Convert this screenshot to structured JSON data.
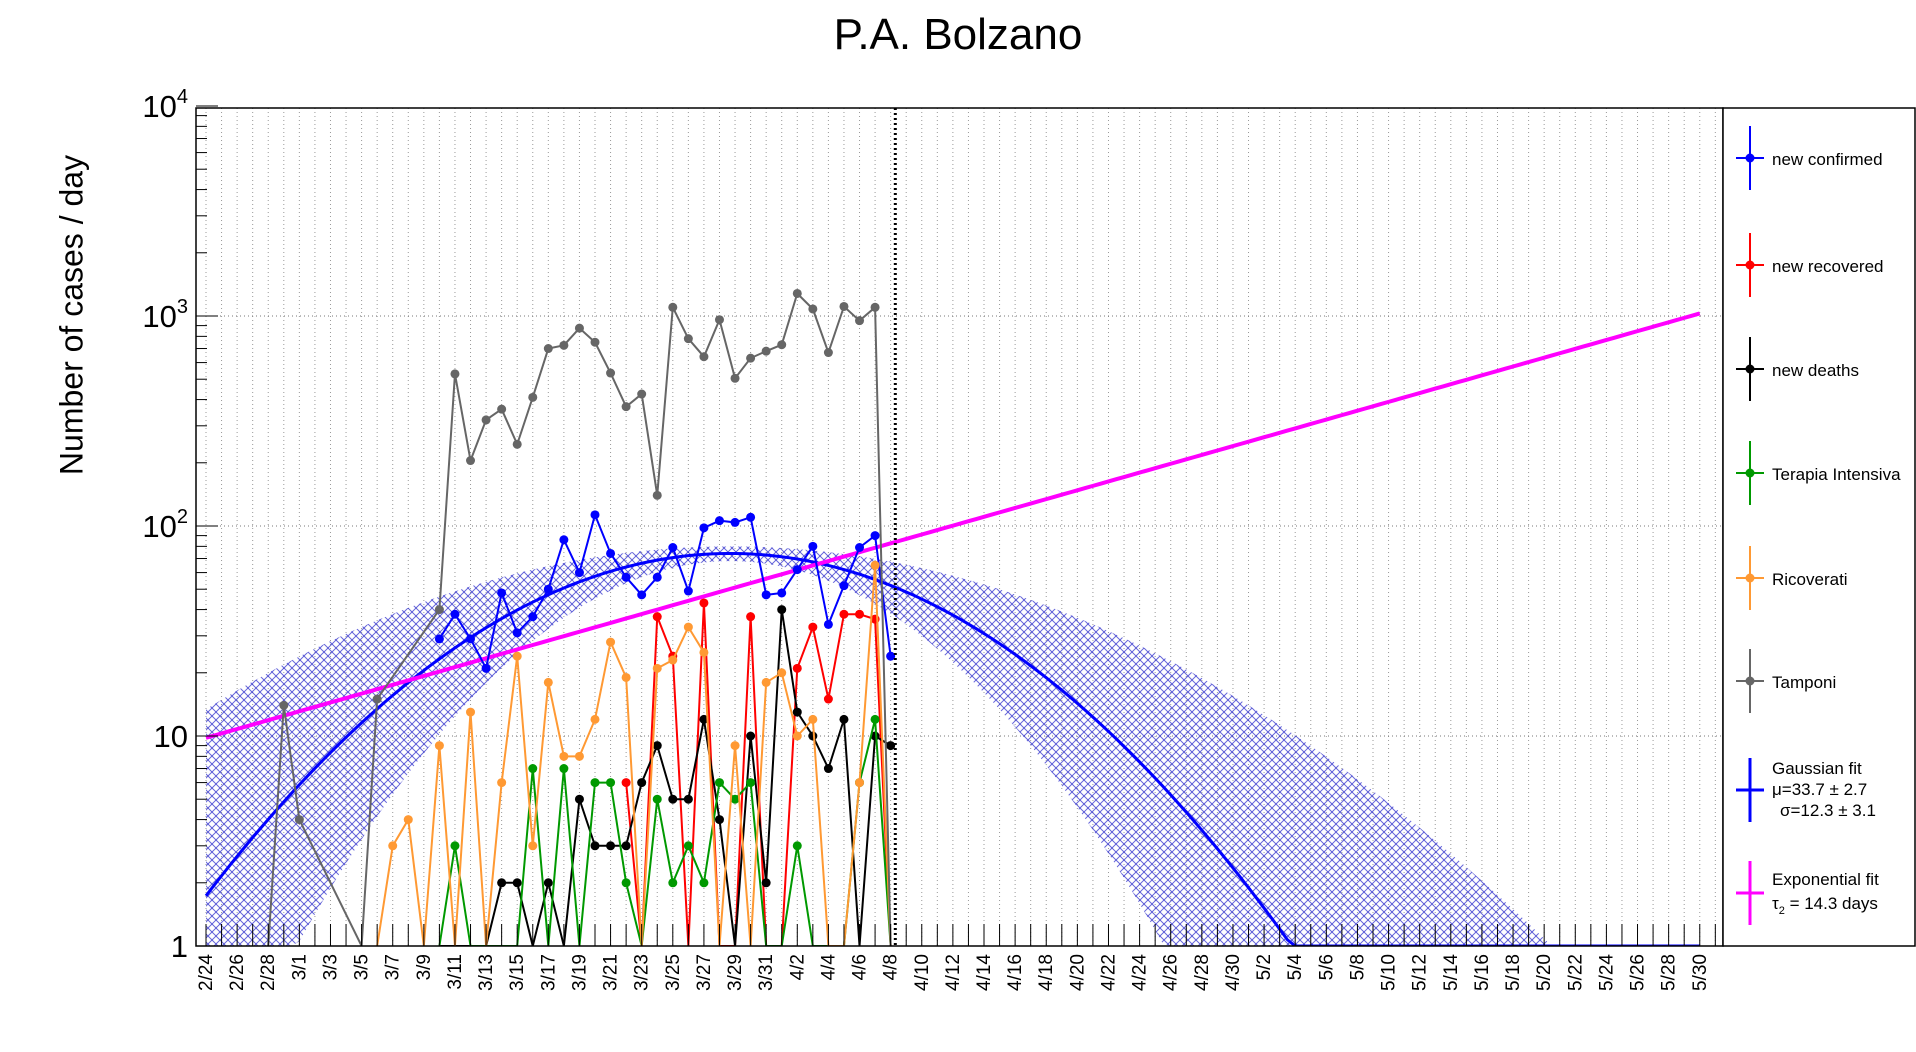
{
  "chart_data": {
    "type": "line",
    "title": "P.A. Bolzano",
    "xlabel": "",
    "ylabel": "Number of cases / day",
    "y_scale": "log",
    "ylim": [
      1,
      10000
    ],
    "y_tick_labels": [
      {
        "value": 1,
        "base": "1",
        "exp": ""
      },
      {
        "value": 10,
        "base": "10",
        "exp": ""
      },
      {
        "value": 100,
        "base": "10",
        "exp": "2"
      },
      {
        "value": 1000,
        "base": "10",
        "exp": "3"
      },
      {
        "value": 10000,
        "base": "10",
        "exp": "4"
      }
    ],
    "x_start_date": "2/24",
    "x_days": 98,
    "x_tick_labels": [
      "2/24",
      "2/26",
      "2/28",
      "3/1",
      "3/3",
      "3/5",
      "3/7",
      "3/9",
      "3/11",
      "3/13",
      "3/15",
      "3/17",
      "3/19",
      "3/21",
      "3/23",
      "3/25",
      "3/27",
      "3/29",
      "3/31",
      "4/2",
      "4/4",
      "4/6",
      "4/8",
      "4/10",
      "4/12",
      "4/14",
      "4/16",
      "4/18",
      "4/20",
      "4/22",
      "4/24",
      "4/26",
      "4/28",
      "4/30",
      "5/2",
      "5/4",
      "5/6",
      "5/8",
      "5/10",
      "5/12",
      "5/14",
      "5/16",
      "5/18",
      "5/20",
      "5/22",
      "5/24",
      "5/26",
      "5/28",
      "5/30"
    ],
    "grid": true,
    "vertical_marker_day": 44.3,
    "series": [
      {
        "name": "new confirmed",
        "color": "#0000ff",
        "x": [
          15,
          16,
          17,
          18,
          19,
          20,
          21,
          22,
          23,
          24,
          25,
          26,
          27,
          28,
          29,
          30,
          31,
          32,
          33,
          34,
          35,
          36,
          37,
          38,
          39,
          40,
          41,
          42,
          43,
          44
        ],
        "y": [
          29,
          38,
          29,
          21,
          48,
          31,
          37,
          50,
          86,
          60,
          113,
          74,
          57,
          47,
          57,
          79,
          49,
          98,
          106,
          104,
          110,
          47,
          48,
          62,
          80,
          34,
          52,
          79,
          90,
          24
        ]
      },
      {
        "name": "new recovered",
        "color": "#ff0000",
        "x": [
          27,
          28,
          29,
          30,
          31,
          32,
          33,
          34,
          35,
          36,
          37,
          38,
          39,
          40,
          41,
          42,
          43,
          44
        ],
        "y": [
          6,
          0,
          37,
          24,
          0,
          43,
          0,
          0,
          37,
          0,
          0,
          21,
          33,
          15,
          38,
          38,
          36,
          0
        ]
      },
      {
        "name": "new deaths",
        "color": "#000000",
        "x": [
          15,
          16,
          17,
          18,
          19,
          20,
          21,
          22,
          23,
          24,
          25,
          26,
          27,
          28,
          29,
          30,
          31,
          32,
          33,
          34,
          35,
          36,
          37,
          38,
          39,
          40,
          41,
          42,
          43,
          44
        ],
        "y": [
          0,
          0,
          0,
          0,
          2,
          2,
          0,
          2,
          0,
          5,
          3,
          3,
          3,
          6,
          9,
          5,
          5,
          12,
          4,
          0,
          10,
          2,
          40,
          13,
          10,
          7,
          12,
          0,
          10,
          9
        ]
      },
      {
        "name": "Terapia Intensiva",
        "color": "#009900",
        "x": [
          15,
          16,
          17,
          18,
          19,
          20,
          21,
          22,
          23,
          24,
          25,
          26,
          27,
          28,
          29,
          30,
          31,
          32,
          33,
          34,
          35,
          36,
          37,
          38,
          39,
          40,
          41,
          42,
          43,
          44
        ],
        "y": [
          0,
          3,
          0,
          0,
          0,
          0,
          7,
          0,
          7,
          0,
          6,
          6,
          2,
          0,
          5,
          2,
          3,
          2,
          6,
          5,
          6,
          0,
          0,
          3,
          0,
          0,
          0,
          6,
          12,
          0
        ]
      },
      {
        "name": "Ricoverati",
        "color": "#ff9933",
        "x": [
          11,
          12,
          13,
          14,
          15,
          16,
          17,
          18,
          19,
          20,
          21,
          22,
          23,
          24,
          25,
          26,
          27,
          28,
          29,
          30,
          31,
          32,
          33,
          34,
          35,
          36,
          37,
          38,
          39,
          40,
          41,
          42,
          43,
          44
        ],
        "y": [
          0,
          3,
          4,
          0,
          9,
          0,
          13,
          0,
          6,
          24,
          3,
          18,
          8,
          8,
          12,
          28,
          19,
          0,
          21,
          23,
          33,
          25,
          0,
          9,
          0,
          18,
          20,
          10,
          12,
          0,
          0,
          6,
          65,
          0
        ]
      },
      {
        "name": "Tamponi",
        "color": "#666666",
        "x": [
          4,
          5,
          6,
          10,
          11,
          15,
          16,
          17,
          18,
          19,
          20,
          21,
          22,
          23,
          24,
          25,
          26,
          27,
          28,
          29,
          30,
          31,
          32,
          33,
          34,
          35,
          36,
          37,
          38,
          39,
          40,
          41,
          42,
          43,
          44
        ],
        "y": [
          0,
          14,
          4,
          0,
          15,
          40,
          530,
          205,
          320,
          360,
          245,
          410,
          700,
          725,
          875,
          750,
          535,
          370,
          425,
          140,
          1100,
          780,
          640,
          960,
          505,
          630,
          680,
          730,
          1280,
          1080,
          670,
          1110,
          950,
          1100,
          0
        ]
      }
    ],
    "fits": [
      {
        "name": "Gaussian fit",
        "color": "#0000ff",
        "type": "gaussian",
        "label_lines": [
          "Gaussian fit",
          "μ=33.7 ± 2.7",
          "σ=12.3 ± 3.1"
        ],
        "mu": 33.7,
        "sigma": 12.3,
        "amplitude": 74,
        "x_range": [
          0,
          96
        ]
      },
      {
        "name": "Exponential fit",
        "color": "#ff00ff",
        "type": "exponential",
        "label_lines": [
          "Exponential fit",
          "τ2 = 14.3 days"
        ],
        "doubling_days": 14.3,
        "y_at_start": 9.8,
        "x_range": [
          0,
          96
        ]
      }
    ],
    "legend": {
      "placement": "right",
      "entries": [
        "new confirmed",
        "new recovered",
        "new deaths",
        "Terapia Intensiva",
        "Ricoverati",
        "Tamponi"
      ],
      "gaussian_label_1": "Gaussian fit",
      "gaussian_label_2": "μ=33.7 ± 2.7",
      "gaussian_label_3": "σ=12.3 ± 3.1",
      "exp_label_1": "Exponential fit",
      "exp_label_2_prefix": "τ",
      "exp_label_2_sub": "2",
      "exp_label_2_suffix": " = 14.3 days"
    }
  }
}
